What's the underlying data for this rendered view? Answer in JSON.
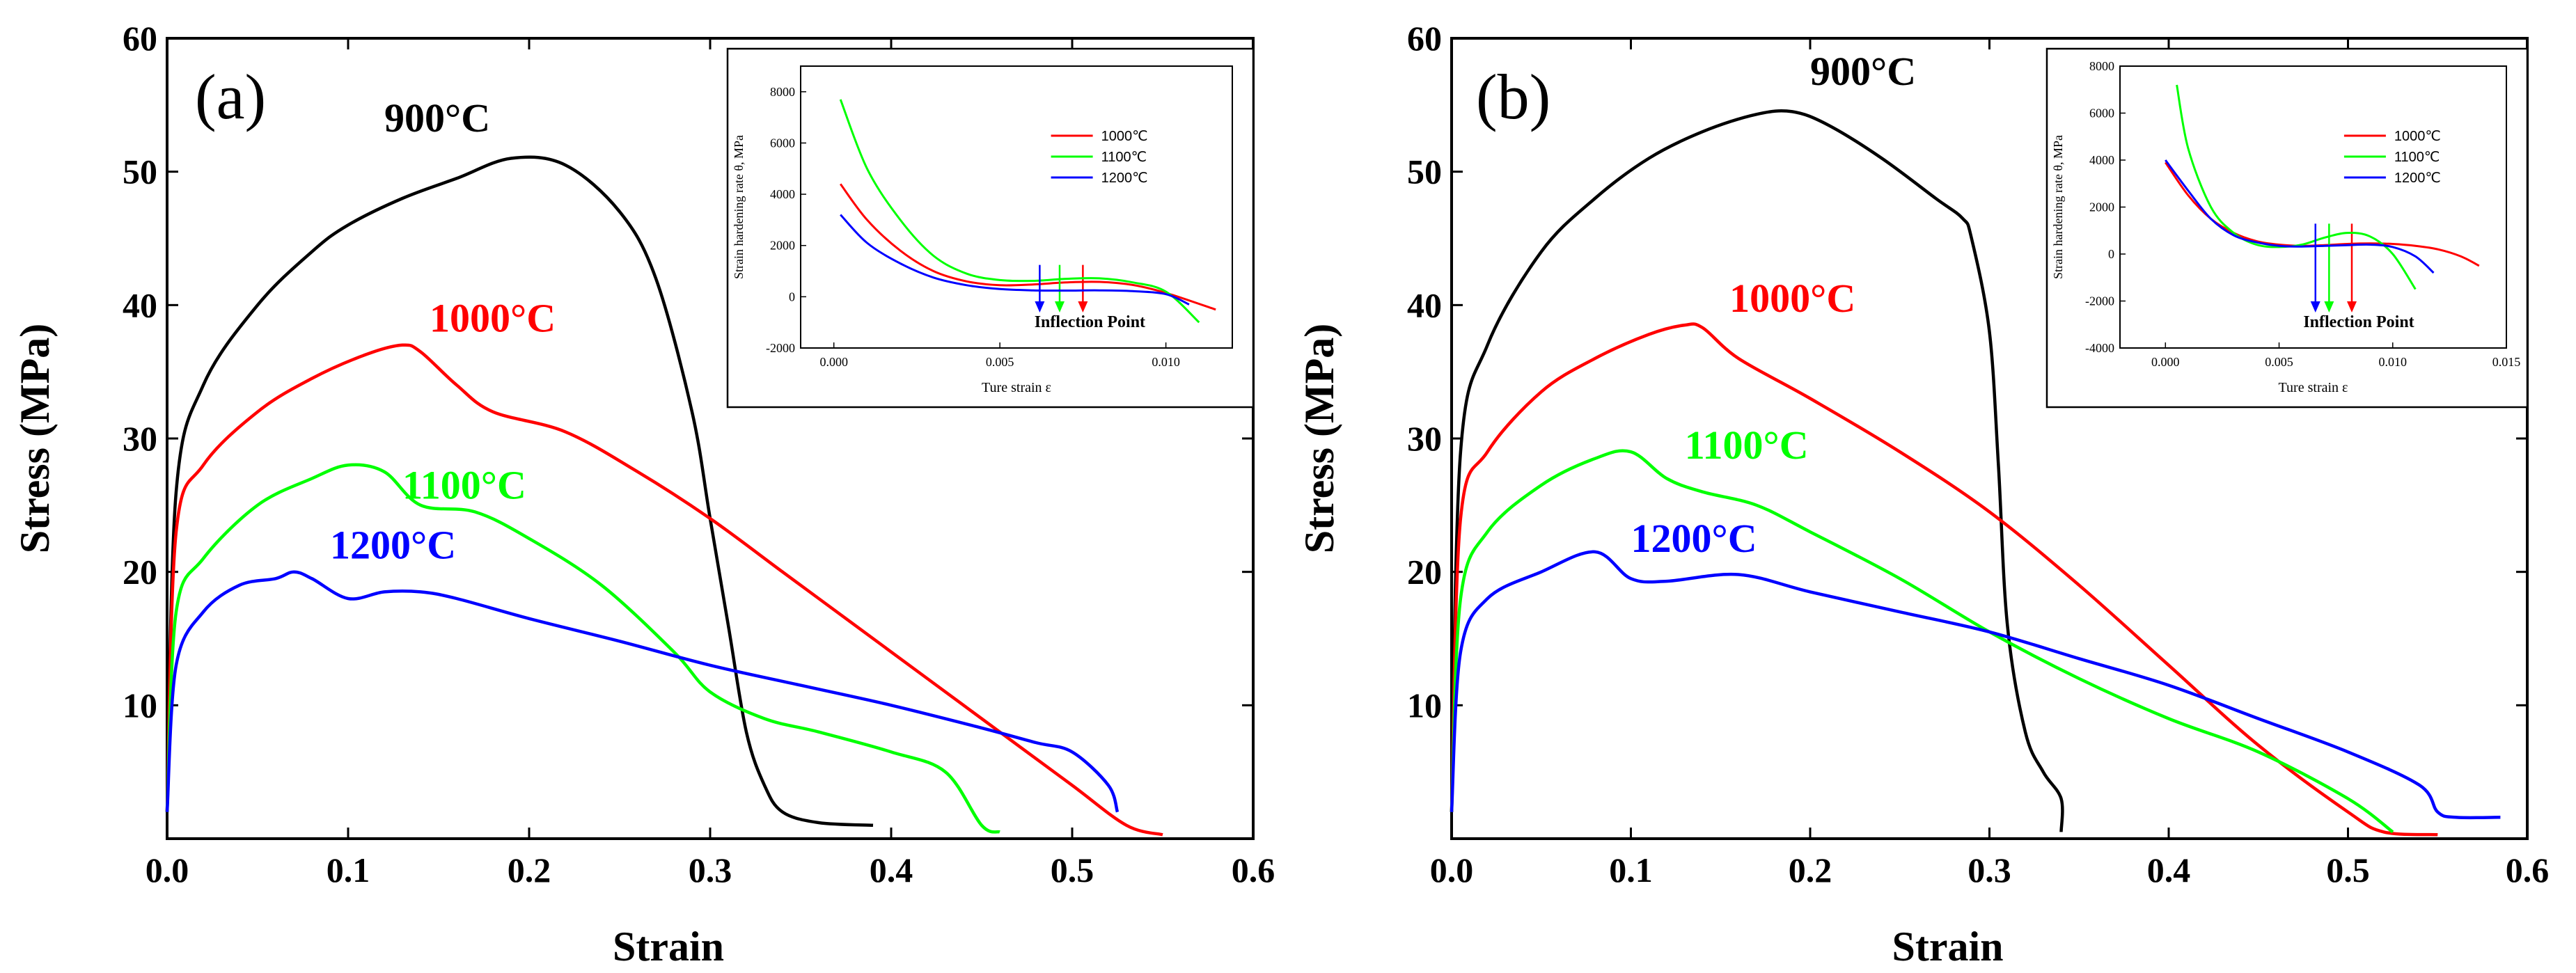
{
  "chart_data": [
    {
      "panel_label": "(a)",
      "type": "line",
      "xlabel": "Strain",
      "ylabel": "Stress (MPa)",
      "xlim": [
        0.0,
        0.6
      ],
      "ylim": [
        0,
        60
      ],
      "xticks": [
        "0.0",
        "0.1",
        "0.2",
        "0.3",
        "0.4",
        "0.5",
        "0.6"
      ],
      "yticks": [
        "10",
        "20",
        "30",
        "40",
        "50",
        "60"
      ],
      "xtick_values": [
        0.0,
        0.1,
        0.2,
        0.3,
        0.4,
        0.5,
        0.6
      ],
      "ytick_values": [
        10,
        20,
        30,
        40,
        50,
        60
      ],
      "grid": false,
      "series": [
        {
          "name": "900°C",
          "color": "#000000",
          "x": [
            0.0,
            0.005,
            0.02,
            0.05,
            0.08,
            0.1,
            0.13,
            0.16,
            0.19,
            0.22,
            0.25,
            0.27,
            0.29,
            0.3,
            0.31,
            0.32,
            0.33,
            0.34,
            0.36,
            0.39
          ],
          "y": [
            2,
            26,
            34,
            40,
            44,
            46,
            48,
            49.5,
            51,
            50.5,
            47,
            42,
            32,
            24,
            16,
            8,
            4,
            2,
            1.2,
            1.0
          ],
          "label_at": [
            0.12,
            53
          ]
        },
        {
          "name": "1000°C",
          "color": "#ff0000",
          "x": [
            0.0,
            0.005,
            0.02,
            0.05,
            0.08,
            0.11,
            0.13,
            0.14,
            0.16,
            0.18,
            0.22,
            0.26,
            0.3,
            0.34,
            0.38,
            0.42,
            0.46,
            0.5,
            0.53,
            0.55
          ],
          "y": [
            2,
            23,
            28,
            32,
            34.5,
            36.3,
            37,
            36.5,
            34,
            32,
            30.5,
            27.5,
            24,
            20,
            16,
            12,
            8,
            4,
            1,
            0.3
          ],
          "label_at": [
            0.145,
            38
          ]
        },
        {
          "name": "1100°C",
          "color": "#00ff00",
          "x": [
            0.0,
            0.005,
            0.02,
            0.05,
            0.08,
            0.1,
            0.12,
            0.14,
            0.17,
            0.2,
            0.24,
            0.28,
            0.3,
            0.33,
            0.36,
            0.4,
            0.43,
            0.45,
            0.46
          ],
          "y": [
            2,
            17,
            21,
            25,
            27,
            28,
            27.5,
            25,
            24.5,
            22.5,
            19,
            14,
            11,
            9,
            8,
            6.5,
            5,
            1,
            0.5
          ],
          "label_at": [
            0.13,
            25.5
          ]
        },
        {
          "name": "1200°C",
          "color": "#0000ff",
          "x": [
            0.0,
            0.005,
            0.02,
            0.04,
            0.06,
            0.07,
            0.08,
            0.1,
            0.12,
            0.14,
            0.16,
            0.2,
            0.25,
            0.3,
            0.35,
            0.4,
            0.45,
            0.48,
            0.5,
            0.52,
            0.525
          ],
          "y": [
            2,
            13,
            17,
            19,
            19.5,
            20,
            19.5,
            18,
            18.5,
            18.5,
            18,
            16.5,
            14.8,
            13,
            11.5,
            10,
            8.3,
            7.2,
            6.5,
            4,
            2
          ],
          "label_at": [
            0.09,
            21
          ]
        }
      ],
      "inset": {
        "type": "line",
        "xlabel": "Ture strain ε",
        "ylabel": "Strain hardening rate θ, MPa",
        "xlim": [
          -0.001,
          0.012
        ],
        "ylim": [
          -2000,
          9000
        ],
        "xticks": [
          "0.000",
          "0.005",
          "0.010"
        ],
        "yticks": [
          "-2000",
          "0",
          "2000",
          "4000",
          "6000",
          "8000"
        ],
        "xtick_values": [
          0.0,
          0.005,
          0.01
        ],
        "ytick_values": [
          -2000,
          0,
          2000,
          4000,
          6000,
          8000
        ],
        "annotation": "Inflection Point",
        "legend_position": "right",
        "series": [
          {
            "name": "1000℃",
            "color": "#ff0000",
            "x": [
              0.0002,
              0.001,
              0.002,
              0.003,
              0.004,
              0.005,
              0.006,
              0.007,
              0.008,
              0.009,
              0.01,
              0.0115
            ],
            "y": [
              4400,
              3000,
              1800,
              1000,
              600,
              450,
              480,
              560,
              580,
              460,
              150,
              -500
            ],
            "inflection_x": 0.0075
          },
          {
            "name": "1100℃",
            "color": "#00ff00",
            "x": [
              0.0002,
              0.001,
              0.002,
              0.003,
              0.004,
              0.005,
              0.006,
              0.007,
              0.008,
              0.009,
              0.01,
              0.011
            ],
            "y": [
              7700,
              5000,
              3000,
              1600,
              900,
              650,
              620,
              700,
              720,
              560,
              200,
              -1000
            ],
            "inflection_x": 0.0068
          },
          {
            "name": "1200℃",
            "color": "#0000ff",
            "x": [
              0.0002,
              0.001,
              0.002,
              0.003,
              0.004,
              0.005,
              0.006,
              0.007,
              0.008,
              0.009,
              0.01,
              0.0107
            ],
            "y": [
              3200,
              2100,
              1300,
              750,
              450,
              300,
              250,
              240,
              250,
              220,
              100,
              -300
            ],
            "inflection_x": 0.0062
          }
        ]
      }
    },
    {
      "panel_label": "(b)",
      "type": "line",
      "xlabel": "Strain",
      "ylabel": "Stress (MPa)",
      "xlim": [
        0.0,
        0.6
      ],
      "ylim": [
        0,
        60
      ],
      "xticks": [
        "0.0",
        "0.1",
        "0.2",
        "0.3",
        "0.4",
        "0.5",
        "0.6"
      ],
      "yticks": [
        "10",
        "20",
        "30",
        "40",
        "50",
        "60"
      ],
      "xtick_values": [
        0.0,
        0.1,
        0.2,
        0.3,
        0.4,
        0.5,
        0.6
      ],
      "ytick_values": [
        10,
        20,
        30,
        40,
        50,
        60
      ],
      "grid": false,
      "series": [
        {
          "name": "900°C",
          "color": "#000000",
          "x": [
            0.0,
            0.005,
            0.02,
            0.05,
            0.08,
            0.11,
            0.14,
            0.17,
            0.19,
            0.21,
            0.24,
            0.27,
            0.285,
            0.29,
            0.3,
            0.305,
            0.31,
            0.32,
            0.33,
            0.34,
            0.34
          ],
          "y": [
            2,
            29,
            37,
            44,
            48,
            51,
            53,
            54.3,
            54.5,
            53.5,
            51,
            48,
            46.5,
            45,
            38,
            28,
            16,
            8,
            5,
            3,
            0.5
          ],
          "label_at": [
            0.2,
            56.5
          ]
        },
        {
          "name": "1000°C",
          "color": "#ff0000",
          "x": [
            0.0,
            0.005,
            0.02,
            0.05,
            0.08,
            0.11,
            0.13,
            0.14,
            0.16,
            0.2,
            0.25,
            0.3,
            0.35,
            0.4,
            0.45,
            0.5,
            0.52,
            0.55
          ],
          "y": [
            2,
            24,
            29,
            33.5,
            36,
            37.8,
            38.5,
            38.3,
            36,
            33,
            29,
            24.5,
            19,
            13,
            7,
            2,
            0.5,
            0.3
          ],
          "label_at": [
            0.155,
            39.5
          ]
        },
        {
          "name": "1100°C",
          "color": "#00ff00",
          "x": [
            0.0,
            0.005,
            0.02,
            0.05,
            0.08,
            0.1,
            0.12,
            0.14,
            0.17,
            0.2,
            0.25,
            0.3,
            0.35,
            0.4,
            0.45,
            0.5,
            0.525
          ],
          "y": [
            2,
            18,
            23,
            26.5,
            28.5,
            29,
            27,
            26,
            25,
            23,
            19.5,
            15.5,
            12,
            9,
            6.5,
            3,
            0.5
          ],
          "label_at": [
            0.13,
            28.5
          ]
        },
        {
          "name": "1200°C",
          "color": "#0000ff",
          "x": [
            0.0,
            0.005,
            0.02,
            0.05,
            0.08,
            0.1,
            0.12,
            0.16,
            0.2,
            0.25,
            0.3,
            0.35,
            0.4,
            0.45,
            0.5,
            0.54,
            0.55,
            0.56,
            0.585
          ],
          "y": [
            2,
            14,
            18,
            20,
            21.5,
            19.5,
            19.3,
            19.8,
            18.5,
            17,
            15.5,
            13.5,
            11.5,
            9,
            6.5,
            4,
            2,
            1.6,
            1.6
          ],
          "label_at": [
            0.1,
            21.5
          ]
        }
      ],
      "inset": {
        "type": "line",
        "xlabel": "Ture strain ε",
        "ylabel": "Strain hardening rate θ, MPa",
        "xlim": [
          -0.002,
          0.015
        ],
        "ylim": [
          -4000,
          8000
        ],
        "xticks": [
          "0.000",
          "0.005",
          "0.010",
          "0.015"
        ],
        "yticks": [
          "-4000",
          "-2000",
          "0",
          "2000",
          "4000",
          "6000",
          "8000"
        ],
        "xtick_values": [
          0.0,
          0.005,
          0.01,
          0.015
        ],
        "ytick_values": [
          -4000,
          -2000,
          0,
          2000,
          4000,
          6000,
          8000
        ],
        "annotation": "Inflection Point",
        "legend_position": "right",
        "series": [
          {
            "name": "1000℃",
            "color": "#ff0000",
            "x": [
              0.0,
              0.001,
              0.002,
              0.003,
              0.004,
              0.005,
              0.006,
              0.007,
              0.008,
              0.009,
              0.01,
              0.011,
              0.012,
              0.013,
              0.0138
            ],
            "y": [
              3900,
              2500,
              1500,
              900,
              550,
              400,
              350,
              380,
              430,
              450,
              430,
              350,
              200,
              -100,
              -500
            ],
            "inflection_x": 0.0082
          },
          {
            "name": "1100℃",
            "color": "#00ff00",
            "x": [
              0.0005,
              0.001,
              0.002,
              0.003,
              0.004,
              0.005,
              0.006,
              0.007,
              0.008,
              0.009,
              0.01,
              0.011
            ],
            "y": [
              7200,
              4500,
              2000,
              900,
              400,
              300,
              400,
              700,
              900,
              750,
              0,
              -1500
            ],
            "inflection_x": 0.0072
          },
          {
            "name": "1200℃",
            "color": "#0000ff",
            "x": [
              0.0,
              0.001,
              0.002,
              0.003,
              0.004,
              0.005,
              0.006,
              0.007,
              0.008,
              0.009,
              0.01,
              0.011,
              0.0118
            ],
            "y": [
              4000,
              2700,
              1500,
              800,
              500,
              350,
              320,
              350,
              380,
              400,
              300,
              -100,
              -800
            ],
            "inflection_x": 0.0066
          }
        ]
      }
    }
  ]
}
